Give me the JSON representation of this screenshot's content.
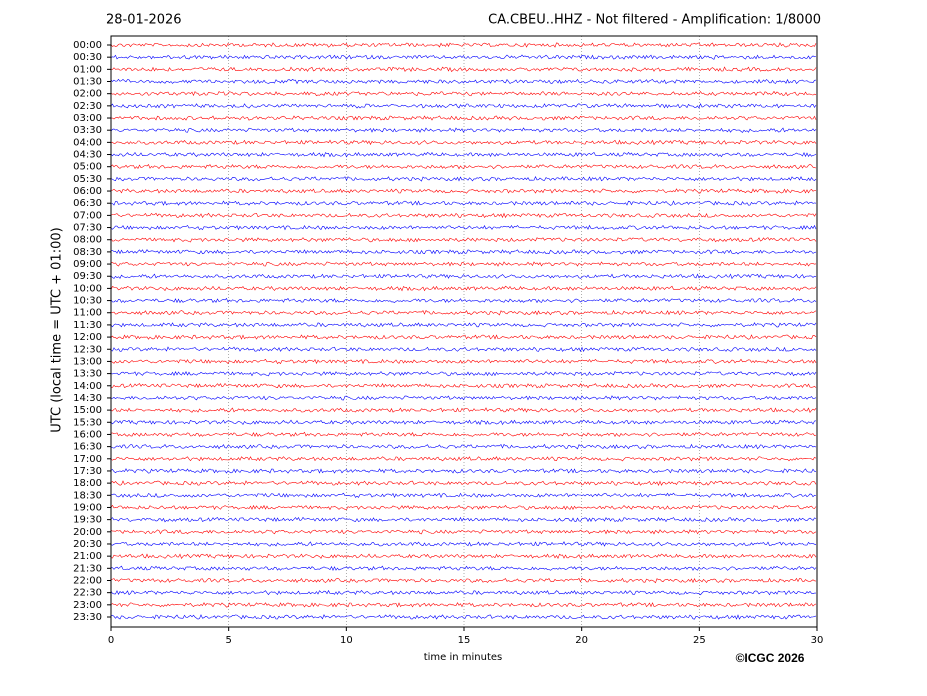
{
  "chart_data": {
    "type": "helicorder",
    "title_left": "28-01-2026",
    "title_right": "CA.CBEU..HHZ - Not filtered - Amplification: 1/8000",
    "xlabel": "time in minutes",
    "ylabel": "UTC (local time = UTC + 01:00)",
    "copyright": "©ICGC 2026",
    "categories": [
      "00:00",
      "00:30",
      "01:00",
      "01:30",
      "02:00",
      "02:30",
      "03:00",
      "03:30",
      "04:00",
      "04:30",
      "05:00",
      "05:30",
      "06:00",
      "06:30",
      "07:00",
      "07:30",
      "08:00",
      "08:30",
      "09:00",
      "09:30",
      "10:00",
      "10:30",
      "11:00",
      "11:30",
      "12:00",
      "12:30",
      "13:00",
      "13:30",
      "14:00",
      "14:30",
      "15:00",
      "15:30",
      "16:00",
      "16:30",
      "17:00",
      "17:30",
      "18:00",
      "18:30",
      "19:00",
      "19:30",
      "20:00",
      "20:30",
      "21:00",
      "21:30",
      "22:00",
      "22:30",
      "23:00",
      "23:30"
    ],
    "xlim": [
      0,
      30
    ],
    "xticks": [
      0,
      5,
      10,
      15,
      20,
      25,
      30
    ],
    "grid": true,
    "trace_colors": [
      "#ff0000",
      "#0000ff"
    ]
  }
}
